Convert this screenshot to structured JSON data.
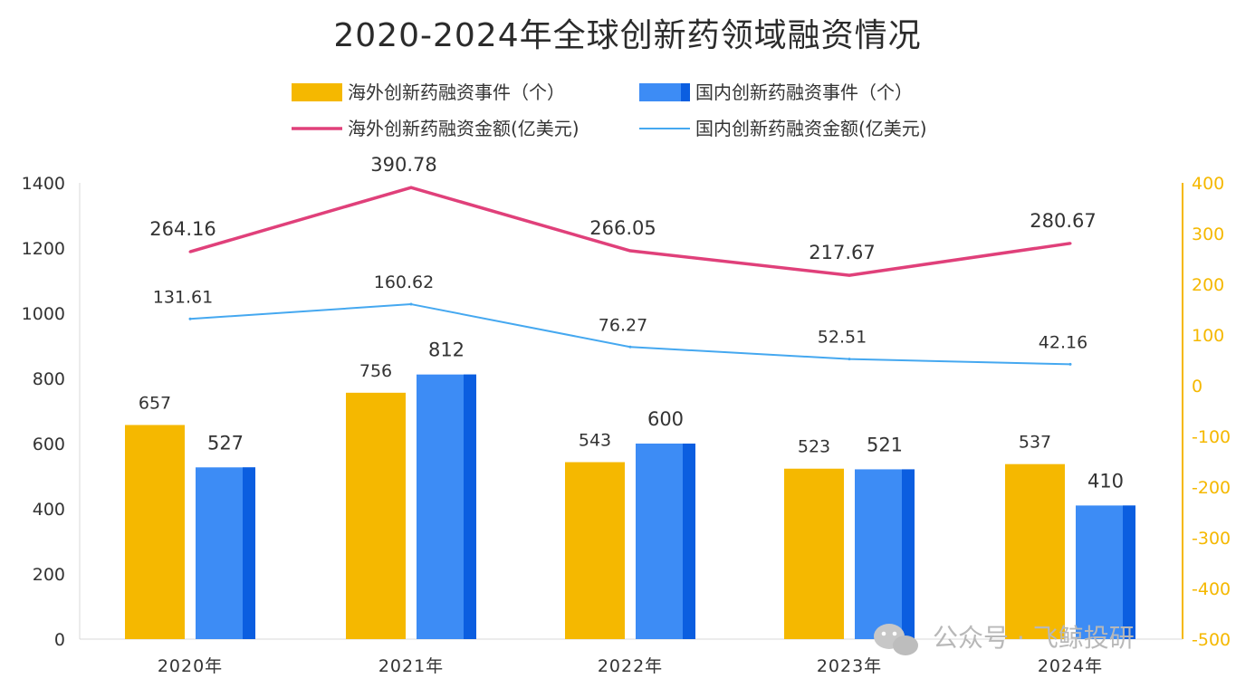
{
  "title": "2020-2024年全球创新药领域融资情况",
  "watermark": "公众号 · 飞鲸投研",
  "colors": {
    "overseas_events": "#f5b800",
    "domestic_events": "#3d8cf5",
    "domestic_events_dark": "#0b5ee0",
    "overseas_amount": "#e0407a",
    "domestic_amount": "#45a8f0",
    "right_axis": "#f5b800"
  },
  "chart_data": {
    "type": "bar",
    "title": "2020-2024年全球创新药领域融资情况",
    "categories": [
      "2020年",
      "2021年",
      "2022年",
      "2023年",
      "2024年"
    ],
    "left_axis": {
      "ylim": [
        0,
        1400
      ],
      "ticks": [
        0,
        200,
        400,
        600,
        800,
        1000,
        1200,
        1400
      ]
    },
    "right_axis": {
      "ylim": [
        -500,
        400
      ],
      "ticks": [
        "-500",
        "-400",
        "-300",
        "-200",
        "-100",
        "0",
        "100",
        "200",
        "300",
        "400"
      ]
    },
    "grid": false,
    "legend_position": "top-center",
    "series": [
      {
        "name": "海外创新药融资事件（个）",
        "type": "bar",
        "axis": "left",
        "values": [
          657,
          756,
          543,
          523,
          537
        ],
        "labels": [
          "657",
          "756",
          "543",
          "523",
          "537"
        ]
      },
      {
        "name": "国内创新药融资事件（个）",
        "type": "bar",
        "axis": "left",
        "values": [
          527,
          812,
          600,
          521,
          410
        ],
        "labels": [
          "527",
          "812",
          "600",
          "521",
          "410"
        ]
      },
      {
        "name": "海外创新药融资金额(亿美元)",
        "type": "line",
        "axis": "right",
        "values": [
          264.16,
          390.78,
          266.05,
          217.67,
          280.67
        ],
        "labels": [
          "264.16",
          "390.78",
          "266.05",
          "217.67",
          "280.67"
        ]
      },
      {
        "name": "国内创新药融资金额(亿美元)",
        "type": "line",
        "axis": "right",
        "values": [
          131.61,
          160.62,
          76.27,
          52.51,
          42.16
        ],
        "labels": [
          "131.61",
          "160.62",
          "76.27",
          "52.51",
          "42.16"
        ]
      }
    ]
  }
}
